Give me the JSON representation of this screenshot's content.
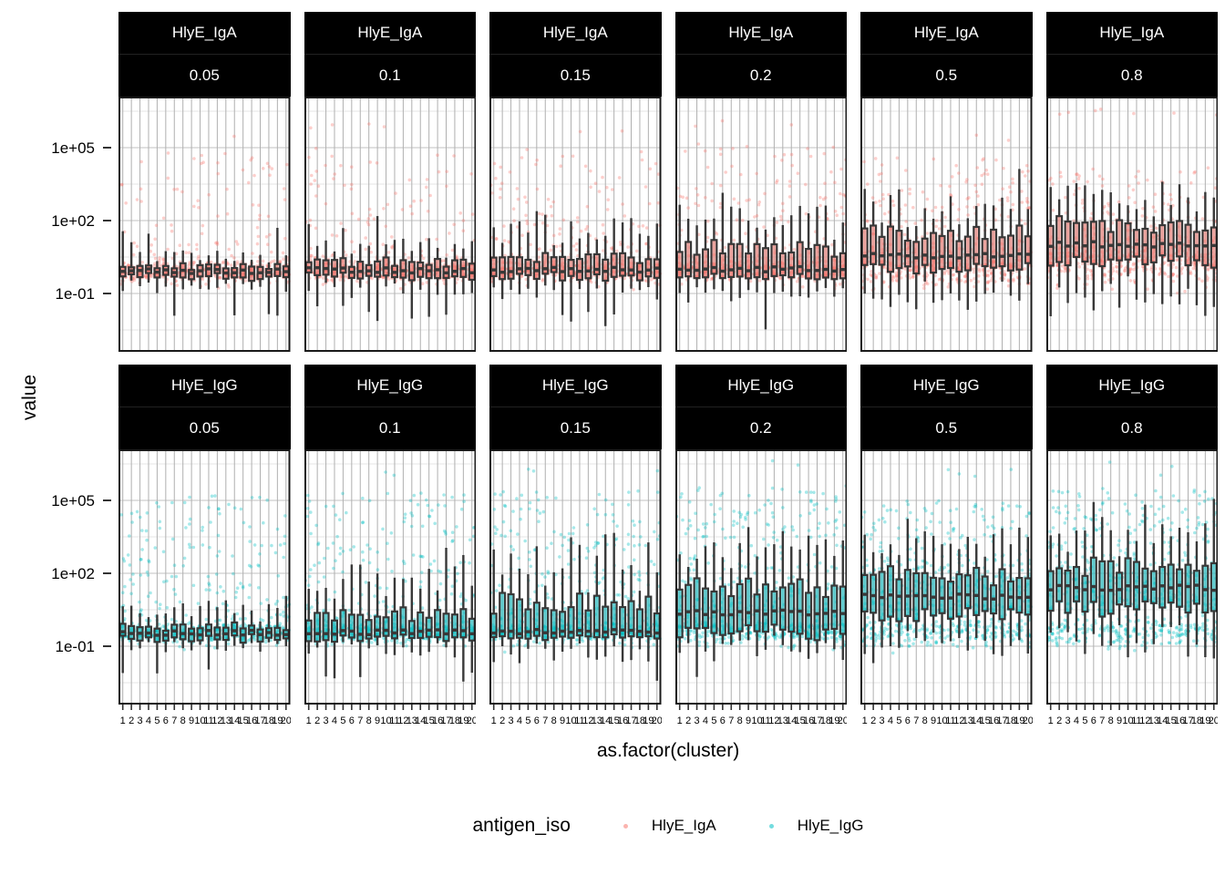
{
  "figure": {
    "y_axis_title": "value",
    "x_axis_title": "as.factor(cluster)",
    "y_tick_labels": [
      "1e+05",
      "1e+02",
      "1e-01"
    ],
    "legend": {
      "title": "antigen_iso",
      "items": [
        {
          "label": "HlyE_IgA",
          "color": "#F8766D"
        },
        {
          "label": "HlyE_IgG",
          "color": "#00BFC4"
        }
      ]
    }
  },
  "chart_data": {
    "type": "boxplot",
    "subtype": "boxplot-with-jittered-points",
    "log10_y_scale": true,
    "facet_row_variable": "antigen_iso",
    "facet_row_values": [
      "HlyE_IgA",
      "HlyE_IgG"
    ],
    "facet_col_values": [
      "0.05",
      "0.1",
      "0.15",
      "0.2",
      "0.5",
      "0.8"
    ],
    "x_variable": "as.factor(cluster)",
    "clusters": [
      "1",
      "2",
      "3",
      "4",
      "5",
      "6",
      "7",
      "8",
      "9",
      "10",
      "11",
      "12",
      "13",
      "14",
      "15",
      "16",
      "17",
      "18",
      "19",
      "20"
    ],
    "y_axis": {
      "tick_labels": [
        "1e+05",
        "1e+02",
        "1e-01"
      ],
      "tick_values_log10": [
        5,
        2,
        -1
      ],
      "minor_gridlines_log10": [
        6.5,
        3.5,
        0.5,
        -2.5
      ],
      "range_log10": [
        -3.25,
        7.25
      ]
    },
    "series_colors": {
      "HlyE_IgA": "#F8766D",
      "HlyE_IgG": "#00BFC4"
    },
    "points_per_cluster": 34,
    "panels": [
      {
        "antigen": "HlyE_IgA",
        "scale": "0.05",
        "color": "#F8766D",
        "stats_log10": {
          "median": -0.08,
          "q1": -0.3,
          "q3": 0.13,
          "whisker_low": -0.72,
          "whisker_high": 0.6,
          "band_center": -0.08,
          "band_sd": 0.22,
          "points_max": 4.9,
          "extreme_max": 6.0,
          "low_frac": 0.72,
          "upper_pow": 3.0
        }
      },
      {
        "antigen": "HlyE_IgA",
        "scale": "0.1",
        "color": "#F8766D",
        "stats_log10": {
          "median": -0.05,
          "q1": -0.3,
          "q3": 0.28,
          "whisker_low": -0.85,
          "whisker_high": 1.0,
          "band_center": -0.06,
          "band_sd": 0.23,
          "points_max": 5.0,
          "extreme_max": 6.1,
          "low_frac": 0.7,
          "upper_pow": 2.8
        }
      },
      {
        "antigen": "HlyE_IgA",
        "scale": "0.15",
        "color": "#F8766D",
        "stats_log10": {
          "median": -0.03,
          "q1": -0.32,
          "q3": 0.5,
          "whisker_low": -0.95,
          "whisker_high": 1.55,
          "band_center": -0.05,
          "band_sd": 0.24,
          "points_max": 5.1,
          "extreme_max": 6.2,
          "low_frac": 0.66,
          "upper_pow": 2.6
        }
      },
      {
        "antigen": "HlyE_IgA",
        "scale": "0.2",
        "color": "#F8766D",
        "stats_log10": {
          "median": 0.0,
          "q1": -0.3,
          "q3": 0.85,
          "whisker_low": -1.05,
          "whisker_high": 2.0,
          "band_center": -0.02,
          "band_sd": 0.25,
          "points_max": 5.2,
          "extreme_max": 6.3,
          "low_frac": 0.62,
          "upper_pow": 2.4
        }
      },
      {
        "antigen": "HlyE_IgA",
        "scale": "0.5",
        "color": "#F8766D",
        "stats_log10": {
          "median": 0.55,
          "q1": 0.02,
          "q3": 1.45,
          "whisker_low": -1.05,
          "whisker_high": 2.6,
          "band_center": 0.05,
          "band_sd": 0.4,
          "points_max": 4.6,
          "extreme_max": 5.6,
          "low_frac": 0.52,
          "upper_pow": 2.6
        }
      },
      {
        "antigen": "HlyE_IgA",
        "scale": "0.8",
        "color": "#F8766D",
        "stats_log10": {
          "median": 1.02,
          "q1": 0.35,
          "q3": 1.8,
          "whisker_low": -1.0,
          "whisker_high": 3.0,
          "band_center": 0.15,
          "band_sd": 0.45,
          "points_max": 4.2,
          "extreme_max": 6.8,
          "low_frac": 0.46,
          "upper_pow": 2.6
        }
      },
      {
        "antigen": "HlyE_IgG",
        "scale": "0.05",
        "color": "#00BFC4",
        "stats_log10": {
          "median": -0.45,
          "q1": -0.68,
          "q3": -0.18,
          "whisker_low": -1.05,
          "whisker_high": 0.5,
          "band_center": -0.45,
          "band_sd": 0.2,
          "points_max": 5.2,
          "extreme_max": 6.6,
          "low_frac": 0.6,
          "upper_pow": 2.2
        }
      },
      {
        "antigen": "HlyE_IgG",
        "scale": "0.1",
        "color": "#00BFC4",
        "stats_log10": {
          "median": -0.42,
          "q1": -0.65,
          "q3": 0.25,
          "whisker_low": -1.2,
          "whisker_high": 1.6,
          "band_center": -0.44,
          "band_sd": 0.21,
          "points_max": 5.3,
          "extreme_max": 6.4,
          "low_frac": 0.58,
          "upper_pow": 2.1
        }
      },
      {
        "antigen": "HlyE_IgG",
        "scale": "0.15",
        "color": "#00BFC4",
        "stats_log10": {
          "median": -0.38,
          "q1": -0.62,
          "q3": 0.8,
          "whisker_low": -1.3,
          "whisker_high": 2.3,
          "band_center": -0.43,
          "band_sd": 0.22,
          "points_max": 5.4,
          "extreme_max": 6.5,
          "low_frac": 0.54,
          "upper_pow": 2.0
        }
      },
      {
        "antigen": "HlyE_IgG",
        "scale": "0.2",
        "color": "#00BFC4",
        "stats_log10": {
          "median": 0.38,
          "q1": -0.4,
          "q3": 1.4,
          "whisker_low": -1.2,
          "whisker_high": 2.9,
          "band_center": -0.42,
          "band_sd": 0.25,
          "points_max": 5.6,
          "extreme_max": 6.9,
          "low_frac": 0.48,
          "upper_pow": 1.9
        }
      },
      {
        "antigen": "HlyE_IgG",
        "scale": "0.5",
        "color": "#00BFC4",
        "stats_log10": {
          "median": 1.05,
          "q1": 0.3,
          "q3": 1.9,
          "whisker_low": -0.9,
          "whisker_high": 3.3,
          "band_center": -0.4,
          "band_sd": 0.3,
          "points_max": 5.0,
          "extreme_max": 6.3,
          "low_frac": 0.42,
          "upper_pow": 2.0
        }
      },
      {
        "antigen": "HlyE_IgG",
        "scale": "0.8",
        "color": "#00BFC4",
        "stats_log10": {
          "median": 1.4,
          "q1": 0.57,
          "q3": 2.26,
          "whisker_low": -0.8,
          "whisker_high": 3.5,
          "band_center": -0.4,
          "band_sd": 0.32,
          "points_max": 5.5,
          "extreme_max": 6.6,
          "low_frac": 0.4,
          "upper_pow": 2.0
        }
      }
    ]
  }
}
